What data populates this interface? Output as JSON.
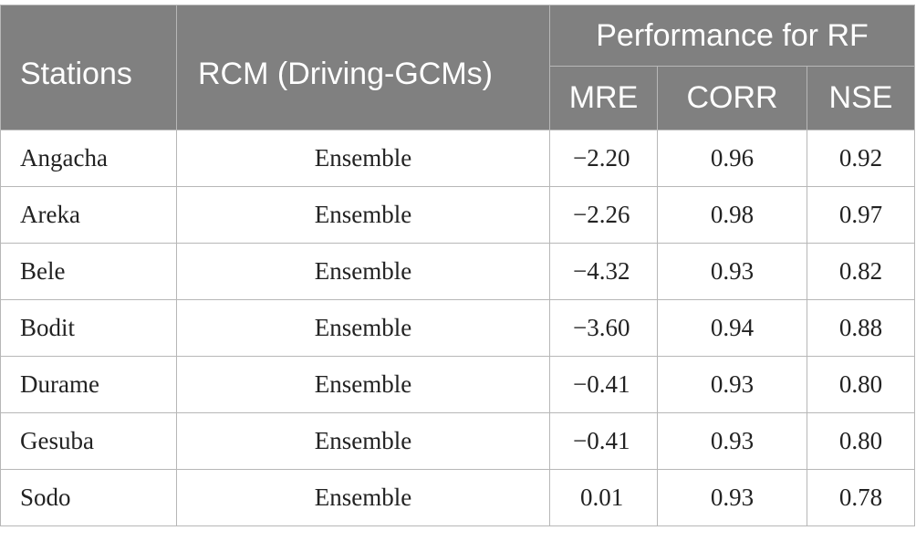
{
  "headers": {
    "stations": "Stations",
    "rcm": "RCM (Driving-GCMs)",
    "performance": "Performance for RF",
    "mre": "MRE",
    "corr": "CORR",
    "nse": "NSE"
  },
  "rows": [
    {
      "station": "Angacha",
      "rcm": "Ensemble",
      "mre": "−2.20",
      "corr": "0.96",
      "nse": "0.92"
    },
    {
      "station": "Areka",
      "rcm": "Ensemble",
      "mre": "−2.26",
      "corr": "0.98",
      "nse": "0.97"
    },
    {
      "station": "Bele",
      "rcm": "Ensemble",
      "mre": "−4.32",
      "corr": "0.93",
      "nse": "0.82"
    },
    {
      "station": "Bodit",
      "rcm": "Ensemble",
      "mre": "−3.60",
      "corr": "0.94",
      "nse": "0.88"
    },
    {
      "station": "Durame",
      "rcm": "Ensemble",
      "mre": "−0.41",
      "corr": "0.93",
      "nse": "0.80"
    },
    {
      "station": "Gesuba",
      "rcm": "Ensemble",
      "mre": "−0.41",
      "corr": "0.93",
      "nse": "0.80"
    },
    {
      "station": "Sodo",
      "rcm": "Ensemble",
      "mre": "0.01",
      "corr": "0.93",
      "nse": "0.78"
    }
  ]
}
